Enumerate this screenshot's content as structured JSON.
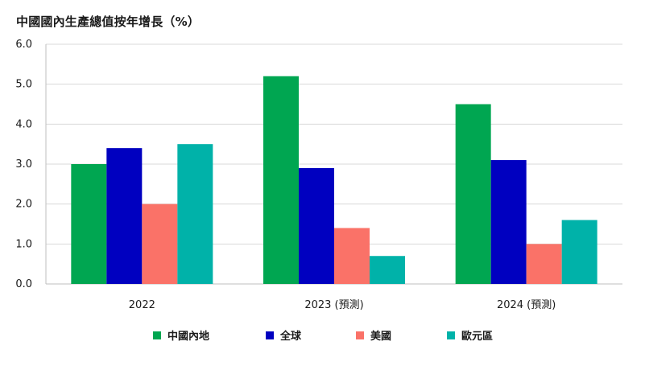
{
  "chart_data": {
    "type": "bar",
    "title": "中國國內生產總值按年增長（%）",
    "categories": [
      "2022",
      "2023 (預測)",
      "2024 (預測)"
    ],
    "series": [
      {
        "name": "中國內地",
        "color": "#00a651",
        "values": [
          3.0,
          5.2,
          4.5
        ]
      },
      {
        "name": "全球",
        "color": "#0000c0",
        "values": [
          3.4,
          2.9,
          3.1
        ]
      },
      {
        "name": "美國",
        "color": "#fa7268",
        "values": [
          2.0,
          1.4,
          1.0
        ]
      },
      {
        "name": "歐元區",
        "color": "#00b2a9",
        "values": [
          3.5,
          0.7,
          1.6
        ]
      }
    ],
    "ylim": [
      0,
      6
    ],
    "yticks": [
      "0.0",
      "1.0",
      "2.0",
      "3.0",
      "4.0",
      "5.0",
      "6.0"
    ],
    "grid": true,
    "legend_position": "bottom"
  }
}
